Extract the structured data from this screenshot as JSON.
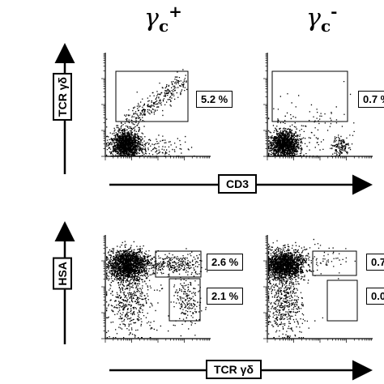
{
  "columns": {
    "left": {
      "symbol": "γ",
      "sub": "c",
      "sup": "+"
    },
    "right": {
      "symbol": "γ",
      "sub": "c",
      "sup": "-"
    }
  },
  "chart_data": [
    {
      "type": "scatter",
      "panel": "top-left",
      "xlabel": "CD3",
      "ylabel": "TCR γδ",
      "gates": [
        {
          "label": "5.2 %",
          "value": 5.2
        }
      ]
    },
    {
      "type": "scatter",
      "panel": "top-right",
      "xlabel": "CD3",
      "ylabel": "TCR γδ",
      "gates": [
        {
          "label": "0.7 %",
          "value": 0.7
        }
      ]
    },
    {
      "type": "scatter",
      "panel": "bottom-left",
      "xlabel": "TCR γδ",
      "ylabel": "HSA",
      "gates": [
        {
          "label": "2.6 %",
          "value": 2.6
        },
        {
          "label": "2.1 %",
          "value": 2.1
        }
      ]
    },
    {
      "type": "scatter",
      "panel": "bottom-right",
      "xlabel": "TCR γδ",
      "ylabel": "HSA",
      "gates": [
        {
          "label": "0.7",
          "value": 0.7
        },
        {
          "label": "0.0",
          "value": 0.0
        }
      ]
    }
  ],
  "axes": {
    "top_x": "CD3",
    "top_y": "TCR γδ",
    "bottom_x": "TCR γδ",
    "bottom_y": "HSA"
  }
}
